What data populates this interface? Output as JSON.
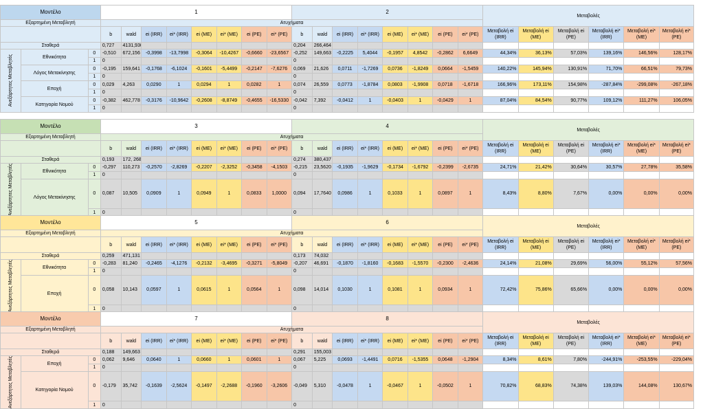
{
  "blocks": [
    {
      "model_label": "Μοντέλο",
      "dep_label": "Εξαρτημένη Μεταβλητή",
      "dep_value": "Ατυχήματα",
      "model_left": "1",
      "model_right": "2",
      "changes_title": "Μεταβολές",
      "headers_left": [
        "b",
        "wald",
        "ei (IRR)",
        "ei* (IRR)",
        "ei (ME)",
        "ei* (ME)",
        "ei (PE)",
        "ei* (PE)"
      ],
      "headers_right": [
        "b",
        "wald",
        "ei (IRR)",
        "ei* (IRR)",
        "ei (ME)",
        "ei* (ME)",
        "ei (PE)",
        "ei* (PE)"
      ],
      "headers_changes": [
        "Μεταβολή ei (IRR)",
        "Μεταβολή ei (ME)",
        "Μεταβολή ei (PE)",
        "Μεταβολή ei* (IRR)",
        "Μεταβολή ei* (ME)",
        "Μεταβολή ei* (PE)"
      ],
      "side_label": "Ανεξάρτητες Μεταβλητές",
      "const_label": "Σταθερά",
      "const_left": [
        "0,727",
        "4131,930"
      ],
      "const_right": [
        "0,204",
        "266,464"
      ],
      "vars": [
        {
          "name": "Εθνικότητα",
          "rows": [
            {
              "code": "0",
              "left": [
                "-0,510",
                "672,156",
                "-0,3998",
                "-13,7998",
                "-0,3064",
                "-10,4267",
                "-0,6660",
                "-23,6567"
              ],
              "right": [
                "-0,252",
                "149,663",
                "-0,2225",
                "5,4044",
                "-0,1957",
                "4,8542",
                "-0,2862",
                "6,6649"
              ],
              "changes": [
                "44,34%",
                "36,13%",
                "57,03%",
                "139,16%",
                "146,56%",
                "128,17%"
              ]
            },
            {
              "code": "1",
              "left": [
                "0"
              ],
              "right": [
                "0"
              ],
              "changes": []
            }
          ]
        },
        {
          "name": "Λόγος Μετακίνησης",
          "rows": [
            {
              "code": "0",
              "left": [
                "-0,195",
                "159,641",
                "-0,1768",
                "-6,1024",
                "-0,1601",
                "-5,4499",
                "-0,2147",
                "-7,6276"
              ],
              "right": [
                "0,069",
                "21,626",
                "0,0711",
                "-1,7269",
                "0,0736",
                "-1,8249",
                "0,0664",
                "-1,5459"
              ],
              "changes": [
                "140,22%",
                "145,94%",
                "130,91%",
                "71,70%",
                "66,51%",
                "79,73%"
              ]
            },
            {
              "code": "1",
              "left": [
                "0"
              ],
              "right": [
                "0"
              ],
              "changes": []
            }
          ]
        },
        {
          "name": "Εποχή",
          "rows": [
            {
              "code": "0",
              "left": [
                "0,029",
                "4,263",
                "0,0290",
                "1",
                "0,0294",
                "1",
                "0,0282",
                "1"
              ],
              "right": [
                "0,074",
                "26,559",
                "0,0773",
                "-1,8784",
                "0,0803",
                "-1,9908",
                "0,0718",
                "-1,6718"
              ],
              "changes": [
                "166,96%",
                "173,11%",
                "154,98%",
                "-287,84%",
                "-299,08%",
                "-267,18%"
              ]
            },
            {
              "code": "1",
              "left": [
                "0"
              ],
              "right": [
                "0"
              ],
              "changes": []
            }
          ]
        },
        {
          "name": "Κατηγορία Νομού",
          "rows": [
            {
              "code": "0",
              "left": [
                "-0,382",
                "462,778",
                "-0,3176",
                "-10,9642",
                "-0,2608",
                "-8,8749",
                "-0,4655",
                "-16,5330"
              ],
              "right": [
                "-0,042",
                "7,392",
                "-0,0412",
                "1",
                "-0,0403",
                "1",
                "-0,0429",
                "1"
              ],
              "changes": [
                "87,04%",
                "84,54%",
                "90,77%",
                "109,12%",
                "111,27%",
                "106,05%"
              ]
            },
            {
              "code": "1",
              "left": [
                "0"
              ],
              "right": [
                "0"
              ],
              "changes": []
            }
          ]
        }
      ]
    },
    {
      "model_label": "Μοντέλο",
      "dep_label": "Εξαρτημένη Μεταβλητή",
      "dep_value": "Ατυχήματα",
      "model_left": "3",
      "model_right": "4",
      "changes_title": "Μεταβολές",
      "headers_left": [
        "b",
        "wald",
        "ei (IRR)",
        "ei* (IRR)",
        "ei (ME)",
        "ei* (ME)",
        "ei (PE)",
        "ei* (PE)"
      ],
      "headers_right": [
        "b",
        "wald",
        "ei (IRR)",
        "ei* (IRR)",
        "ei (ME)",
        "ei* (ME)",
        "ei (PE)",
        "ei* (PE)"
      ],
      "headers_changes": [
        "Μεταβολή ei (IRR)",
        "Μεταβολή ei (ME)",
        "Μεταβολή ei (PE)",
        "Μεταβολή ei* (IRR)",
        "Μεταβολή ei* (ME)",
        "Μεταβολή ei* (PE)"
      ],
      "side_label": "Ανεξάρτητες Μεταβλητές",
      "const_label": "Σταθερά",
      "const_left": [
        "0,193",
        "172, 268"
      ],
      "const_right": [
        "0,274",
        "380,437"
      ],
      "vars": [
        {
          "name": "Εθνικότητα",
          "rows": [
            {
              "code": "0",
              "left": [
                "-0,297",
                "110,273",
                "-0,2570",
                "-2,8269",
                "-0,2207",
                "-2,3252",
                "-0,3458",
                "-4,1503"
              ],
              "right": [
                "-0,215",
                "23,5620",
                "-0,1935",
                "-1,9629",
                "-0,1734",
                "-1,6792",
                "-0,2399",
                "-2,6735"
              ],
              "changes": [
                "24,71%",
                "21,42%",
                "30,64%",
                "30,57%",
                "27,78%",
                "35,58%"
              ]
            },
            {
              "code": "1",
              "left": [
                "0"
              ],
              "right": [
                "0"
              ],
              "changes": []
            }
          ]
        },
        {
          "name": "Λόγος Μετακίνησης",
          "rows": [
            {
              "code": "0",
              "left": [
                "0,087",
                "10,505",
                "0,0909",
                "1",
                "0,0949",
                "1",
                "0,0833",
                "1,0000"
              ],
              "right": [
                "0,094",
                "17,7640",
                "0,0986",
                "1",
                "0,1033",
                "1",
                "0,0897",
                "1"
              ],
              "changes": [
                "8,43%",
                "8,80%",
                "7,67%",
                "0,00%",
                "0,00%",
                "0,00%"
              ]
            },
            {
              "code": "1",
              "left": [
                "0"
              ],
              "right": [
                "0"
              ],
              "changes": []
            }
          ]
        }
      ]
    },
    {
      "model_label": "Μοντέλο",
      "dep_label": "Εξαρτημένη Μεταβλητή",
      "dep_value": "Ατυχήματα",
      "model_left": "5",
      "model_right": "6",
      "changes_title": "Μεταβολές",
      "headers_left": [
        "b",
        "wald",
        "ei (IRR)",
        "ei* (IRR)",
        "ei (ME)",
        "ei* (ME)",
        "ei (PE)",
        "ei* (PE)"
      ],
      "headers_right": [
        "b",
        "wald",
        "ei (IRR)",
        "ei* (IRR)",
        "ei (ME)",
        "ei* (ME)",
        "ei (PE)",
        "ei* (PE)"
      ],
      "headers_changes": [
        "Μεταβολή ei (IRR)",
        "Μεταβολή ei (ME)",
        "Μεταβολή ei (PE)",
        "Μεταβολή ei* (IRR)",
        "Μεταβολή ei* (ME)",
        "Μεταβολή ei* (PE)"
      ],
      "side_label": "Ανεξάρτητες Μεταβλητές",
      "const_label": "Σταθερά",
      "const_left": [
        "0,259",
        "471,131"
      ],
      "const_right": [
        "0,173",
        "74,032"
      ],
      "vars": [
        {
          "name": "Εθνικότητα",
          "rows": [
            {
              "code": "0",
              "left": [
                "-0,283",
                "81,240",
                "-0,2465",
                "-4,1276",
                "-0,2132",
                "-3,4695",
                "-0,3271",
                "-5,8049"
              ],
              "right": [
                "-0,207",
                "46,691",
                "-0,1870",
                "-1,8160",
                "-0,1683",
                "-1,5570",
                "-0,2300",
                "-2,4636"
              ],
              "changes": [
                "24,14%",
                "21,08%",
                "29,69%",
                "56,00%",
                "55,12%",
                "57,56%"
              ]
            },
            {
              "code": "1",
              "left": [
                "0"
              ],
              "right": [
                "0"
              ],
              "changes": []
            }
          ]
        },
        {
          "name": "Εποχή",
          "rows": [
            {
              "code": "0",
              "left": [
                "0,058",
                "10,143",
                "0,0597",
                "1",
                "0,0615",
                "1",
                "0,0564",
                "1"
              ],
              "right": [
                "0,098",
                "14,014",
                "0,1030",
                "1",
                "0,1081",
                "1",
                "0,0934",
                "1"
              ],
              "changes": [
                "72,42%",
                "75,86%",
                "65,66%",
                "0,00%",
                "0,00%",
                "0,00%"
              ]
            },
            {
              "code": "1",
              "left": [
                "0"
              ],
              "right": [
                "0"
              ],
              "changes": []
            }
          ]
        }
      ]
    },
    {
      "model_label": "Μοντέλο",
      "dep_label": "Εξαρτημένη Μεταβλητή",
      "dep_value": "Ατυχήματα",
      "model_left": "7",
      "model_right": "8",
      "changes_title": "Μεταβολές",
      "headers_left": [
        "b",
        "wald",
        "ei (IRR)",
        "ei* (IRR)",
        "ei (ME)",
        "ei* (ME)",
        "ei (PE)",
        "ei* (PE)"
      ],
      "headers_right": [
        "b",
        "wald",
        "ei (IRR)",
        "ei* (IRR)",
        "ei (ME)",
        "ei* (ME)",
        "ei (PE)",
        "ei* (PE)"
      ],
      "headers_changes": [
        "Μεταβολή ei (IRR)",
        "Μεταβολή ei (ME)",
        "Μεταβολή ei (PE)",
        "Μεταβολή ei* (IRR)",
        "Μεταβολή ei* (ME)",
        "Μεταβολή ei* (PE)"
      ],
      "side_label": "Ανεξάρτητες Μεταβλητές",
      "const_label": "Σταθερά",
      "const_left": [
        "0,188",
        "149,663"
      ],
      "const_right": [
        "0,291",
        "155,003"
      ],
      "vars": [
        {
          "name": "Εποχή",
          "rows": [
            {
              "code": "0",
              "left": [
                "0,062",
                "9,646",
                "0,0640",
                "1",
                "0,0660",
                "1",
                "0,0601",
                "1"
              ],
              "right": [
                "0,067",
                "5,225",
                "0,0693",
                "-1,4491",
                "0,0716",
                "-1,5355",
                "0,0648",
                "-1,2904"
              ],
              "changes": [
                "8,34%",
                "8,61%",
                "7,80%",
                "-244,91%",
                "-253,55%",
                "-229,04%"
              ]
            },
            {
              "code": "1",
              "left": [
                "0"
              ],
              "right": [
                "0"
              ],
              "changes": []
            }
          ]
        },
        {
          "name": "Κατηγορία Νομού",
          "rows": [
            {
              "code": "0",
              "left": [
                "-0,179",
                "35,742",
                "-0,1639",
                "-2,5624",
                "-0,1497",
                "-2,2688",
                "-0,1960",
                "-3,2606"
              ],
              "right": [
                "-0,049",
                "5,310",
                "-0,0478",
                "1",
                "-0,0467",
                "1",
                "-0,0502",
                "1"
              ],
              "changes": [
                "70,82%",
                "68,83%",
                "74,38%",
                "139,03%",
                "144,08%",
                "130,67%"
              ]
            },
            {
              "code": "1",
              "left": [
                "0"
              ],
              "right": [
                "0"
              ],
              "changes": []
            }
          ]
        }
      ]
    }
  ]
}
